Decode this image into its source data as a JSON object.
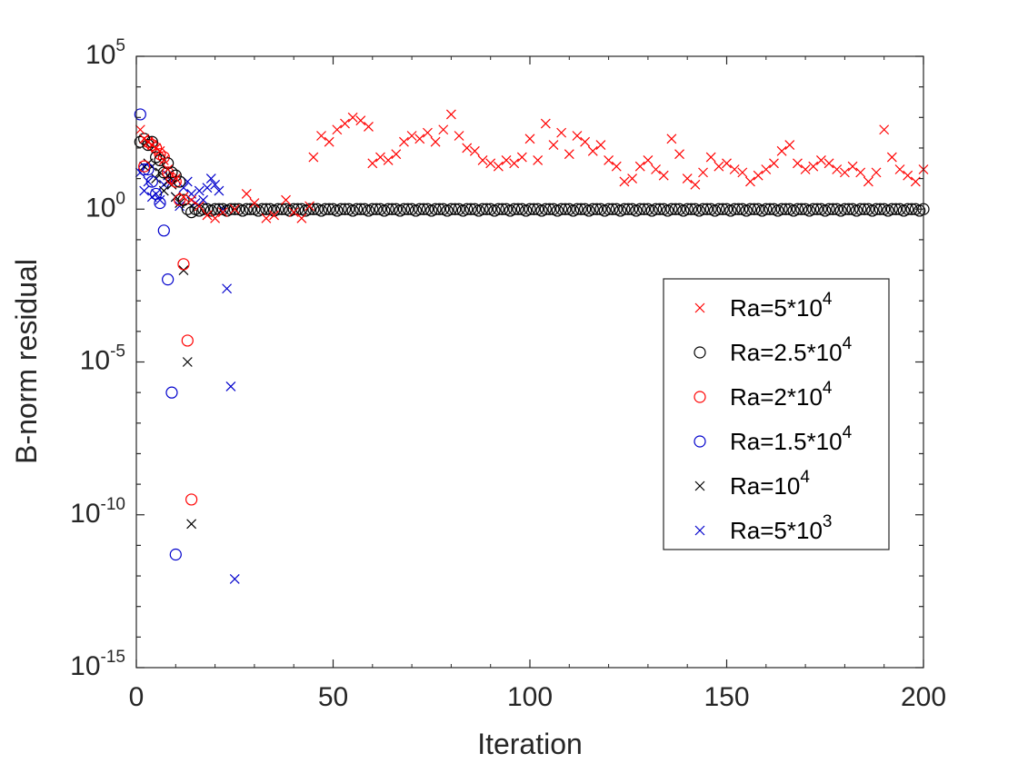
{
  "chart_data": {
    "type": "scatter",
    "title": "",
    "xlabel": "Iteration",
    "ylabel": "B-norm residual",
    "xlim": [
      0,
      200
    ],
    "ylim_log10": [
      -15,
      5
    ],
    "yscale": "log",
    "grid": false,
    "legend_position": "center-right",
    "x_ticks": [
      {
        "value": 0,
        "label": "0"
      },
      {
        "value": 50,
        "label": "50"
      },
      {
        "value": 100,
        "label": "100"
      },
      {
        "value": 150,
        "label": "150"
      },
      {
        "value": 200,
        "label": "200"
      }
    ],
    "y_ticks": [
      {
        "exp": 5,
        "base": "10",
        "sup": "5"
      },
      {
        "exp": 0,
        "base": "10",
        "sup": "0"
      },
      {
        "exp": -5,
        "base": "10",
        "sup": "-5"
      },
      {
        "exp": -10,
        "base": "10",
        "sup": "-10"
      },
      {
        "exp": -15,
        "base": "10",
        "sup": "-15"
      }
    ],
    "series": [
      {
        "name": "Ra=5*10^4",
        "label_base": "Ra=5*10",
        "label_sup": "4",
        "marker": "x",
        "color": "#ff0000",
        "ref_x": [
          1,
          2,
          3,
          4,
          5,
          6,
          7,
          8,
          10,
          12,
          14,
          16,
          18,
          20,
          22,
          25,
          28,
          30,
          33,
          35,
          38,
          40,
          42,
          44,
          45,
          47,
          49,
          51,
          53,
          55,
          57,
          59,
          60,
          62,
          64,
          66,
          68,
          70,
          72,
          74,
          76,
          78,
          80,
          82,
          84,
          86,
          88,
          90,
          92,
          94,
          96,
          98,
          100,
          102,
          104,
          106,
          108,
          110,
          112,
          114,
          116,
          118,
          120,
          122,
          124,
          126,
          128,
          130,
          132,
          134,
          136,
          138,
          140,
          142,
          144,
          146,
          148,
          150,
          152,
          154,
          156,
          158,
          160,
          162,
          164,
          166,
          168,
          170,
          172,
          174,
          176,
          178,
          180,
          182,
          184,
          186,
          188,
          190,
          192,
          194,
          196,
          198,
          200
        ],
        "log_y": [
          2.6,
          2.3,
          2.2,
          2.1,
          2.0,
          1.9,
          1.6,
          1.3,
          1.0,
          0.4,
          0.3,
          0.1,
          -0.2,
          -0.3,
          -0.1,
          0.0,
          0.5,
          0.2,
          -0.3,
          -0.2,
          0.3,
          -0.1,
          -0.3,
          0.1,
          1.7,
          2.4,
          2.2,
          2.6,
          2.8,
          3.0,
          2.9,
          2.7,
          1.5,
          1.7,
          1.6,
          1.8,
          2.2,
          2.4,
          2.3,
          2.5,
          2.2,
          2.6,
          3.1,
          2.4,
          2.0,
          1.9,
          1.6,
          1.5,
          1.4,
          1.6,
          1.5,
          1.7,
          2.3,
          1.6,
          2.8,
          2.1,
          2.5,
          1.8,
          2.4,
          2.2,
          1.9,
          2.1,
          1.6,
          1.4,
          0.9,
          1.0,
          1.4,
          1.6,
          1.3,
          1.1,
          2.3,
          1.8,
          1.0,
          0.8,
          1.2,
          1.7,
          1.4,
          1.5,
          1.3,
          1.2,
          0.9,
          1.1,
          1.3,
          1.5,
          1.9,
          2.1,
          1.5,
          1.3,
          1.4,
          1.6,
          1.5,
          1.3,
          1.2,
          1.4,
          1.2,
          0.9,
          1.2,
          2.6,
          1.7,
          1.3,
          1.1,
          0.9,
          1.3
        ]
      },
      {
        "name": "Ra=2.5*10^4",
        "label_base": "Ra=2.5*10",
        "label_sup": "4",
        "marker": "o",
        "color": "#000000",
        "ref_x": [
          1,
          2,
          3,
          4,
          5,
          6,
          7,
          8,
          9,
          10,
          11,
          12,
          13,
          14,
          15,
          16,
          17,
          18,
          19,
          20,
          21,
          22,
          23,
          24,
          25,
          26,
          27,
          28,
          29,
          30,
          31,
          32,
          33,
          34,
          35,
          36,
          37,
          38,
          39,
          40,
          41,
          42,
          43,
          44,
          45,
          46,
          47,
          48,
          49,
          50,
          51,
          52,
          53,
          54,
          55,
          56,
          57,
          58,
          59,
          60,
          61,
          62,
          63,
          64,
          65,
          66,
          67,
          68,
          69,
          70,
          71,
          72,
          73,
          74,
          75,
          76,
          77,
          78,
          79,
          80,
          81,
          82,
          83,
          84,
          85,
          86,
          87,
          88,
          89,
          90,
          91,
          92,
          93,
          94,
          95,
          96,
          97,
          98,
          99,
          100,
          101,
          102,
          103,
          104,
          105,
          106,
          107,
          108,
          109,
          110,
          111,
          112,
          113,
          114,
          115,
          116,
          117,
          118,
          119,
          120,
          121,
          122,
          123,
          124,
          125,
          126,
          127,
          128,
          129,
          130,
          131,
          132,
          133,
          134,
          135,
          136,
          137,
          138,
          139,
          140,
          141,
          142,
          143,
          144,
          145,
          146,
          147,
          148,
          149,
          150,
          151,
          152,
          153,
          154,
          155,
          156,
          157,
          158,
          159,
          160,
          161,
          162,
          163,
          164,
          165,
          166,
          167,
          168,
          169,
          170,
          171,
          172,
          173,
          174,
          175,
          176,
          177,
          178,
          179,
          180,
          181,
          182,
          183,
          184,
          185,
          186,
          187,
          188,
          189,
          190,
          191,
          192,
          193,
          194,
          195,
          196,
          197,
          198,
          199,
          200
        ],
        "log_y": [
          2.2,
          2.3,
          2.1,
          2.2,
          1.7,
          1.6,
          1.2,
          1.5,
          1.2,
          1.1,
          0.9,
          0.3,
          0.0,
          -0.1,
          0.0,
          -0.05,
          0.0,
          0.0,
          -0.05,
          0.0,
          0.0,
          0.0,
          -0.05,
          0.0,
          0.0,
          0.0,
          -0.05,
          0.0,
          0.0,
          0.0,
          -0.05,
          0.0,
          0.0,
          0.0,
          -0.05,
          0.0,
          0.0,
          0.0,
          -0.05,
          0.0,
          0.0,
          0.0,
          -0.05,
          0.0,
          0.0,
          0.0,
          -0.05,
          0.0,
          0.0,
          0.0,
          -0.05,
          0.0,
          0.0,
          0.0,
          -0.05,
          0.0,
          0.0,
          0.0,
          -0.05,
          0.0,
          0.0,
          0.0,
          -0.05,
          0.0,
          0.0,
          0.0,
          -0.05,
          0.0,
          0.0,
          0.0,
          -0.05,
          0.0,
          0.0,
          0.0,
          -0.05,
          0.0,
          0.0,
          0.0,
          -0.05,
          0.0,
          0.0,
          0.0,
          -0.05,
          0.0,
          0.0,
          0.0,
          -0.05,
          0.0,
          0.0,
          0.0,
          -0.05,
          0.0,
          0.0,
          0.0,
          -0.05,
          0.0,
          0.0,
          0.0,
          -0.05,
          0.0,
          0.0,
          0.0,
          -0.05,
          0.0,
          0.0,
          0.0,
          -0.05,
          0.0,
          0.0,
          0.0,
          -0.05,
          0.0,
          0.0,
          0.0,
          -0.05,
          0.0,
          0.0,
          0.0,
          -0.05,
          0.0,
          0.0,
          0.0,
          -0.05,
          0.0,
          0.0,
          0.0,
          -0.05,
          0.0,
          0.0,
          0.0,
          -0.05,
          0.0,
          0.0,
          0.0,
          -0.05,
          0.0,
          0.0,
          0.0,
          -0.05,
          0.0,
          0.0,
          0.0,
          -0.05,
          0.0,
          0.0,
          0.0,
          -0.05,
          0.0,
          0.0,
          0.0,
          -0.05,
          0.0,
          0.0,
          0.0,
          -0.05,
          0.0,
          0.0,
          0.0,
          -0.05,
          0.0,
          0.0,
          0.0,
          -0.05,
          0.0,
          0.0,
          0.0,
          -0.05,
          0.0,
          0.0,
          0.0,
          -0.05,
          0.0,
          0.0,
          0.0,
          -0.05,
          0.0,
          0.0,
          0.0,
          -0.05,
          0.0,
          0.0,
          0.0,
          -0.05,
          0.0,
          0.0,
          0.0,
          -0.05,
          0.0,
          0.0,
          0.0,
          -0.05,
          0.0,
          0.0,
          0.0,
          -0.05,
          0.0,
          0.0,
          0.0,
          -0.05,
          0.0,
          0.0,
          0.0,
          -0.05,
          0.0,
          0.0,
          0.0,
          -0.05,
          0.0,
          0.0,
          0.0
        ]
      },
      {
        "name": "Ra=2*10^4",
        "label_base": "Ra=2*10",
        "label_sup": "4",
        "marker": "o",
        "color": "#ff0000",
        "ref_x": [
          2,
          3,
          4,
          5,
          6,
          7,
          8,
          9,
          10,
          11,
          12,
          13,
          14
        ],
        "log_y": [
          1.4,
          2.2,
          2.1,
          2.0,
          1.8,
          1.7,
          1.2,
          1.0,
          0.9,
          0.3,
          -1.8,
          -4.3,
          -9.5
        ]
      },
      {
        "name": "Ra=1.5*10^4",
        "label_base": "Ra=1.5*10",
        "label_sup": "4",
        "marker": "o",
        "color": "#0000cc",
        "ref_x": [
          1,
          2,
          3,
          4,
          5,
          6,
          7,
          8,
          9,
          10
        ],
        "log_y": [
          3.1,
          1.3,
          1.3,
          0.9,
          0.5,
          0.2,
          -0.7,
          -2.3,
          -6.0,
          -11.3
        ]
      },
      {
        "name": "Ra=10^4",
        "label_base": "Ra=10",
        "label_sup": "4",
        "marker": "x",
        "color": "#000000",
        "ref_x": [
          2,
          3,
          4,
          5,
          6,
          7,
          8,
          9,
          10,
          11,
          12,
          13,
          14
        ],
        "log_y": [
          1.4,
          1.5,
          1.4,
          1.0,
          1.2,
          0.6,
          0.9,
          0.8,
          0.4,
          0.2,
          -2.0,
          -5.0,
          -10.3
        ]
      },
      {
        "name": "Ra=5*10^3",
        "label_base": "Ra=5*10",
        "label_sup": "3",
        "marker": "x",
        "color": "#0000cc",
        "ref_x": [
          1,
          2,
          3,
          4,
          5,
          6,
          7,
          8,
          9,
          10,
          11,
          12,
          13,
          14,
          15,
          16,
          17,
          18,
          19,
          20,
          21,
          22,
          23,
          24,
          25
        ],
        "log_y": [
          1.2,
          0.6,
          0.9,
          0.4,
          0.5,
          0.3,
          0.8,
          1.1,
          0.9,
          0.4,
          0.1,
          0.7,
          0.9,
          0.5,
          0.2,
          0.6,
          0.3,
          0.7,
          1.0,
          0.8,
          0.6,
          0.0,
          -2.6,
          -5.8,
          -12.1
        ]
      }
    ]
  }
}
